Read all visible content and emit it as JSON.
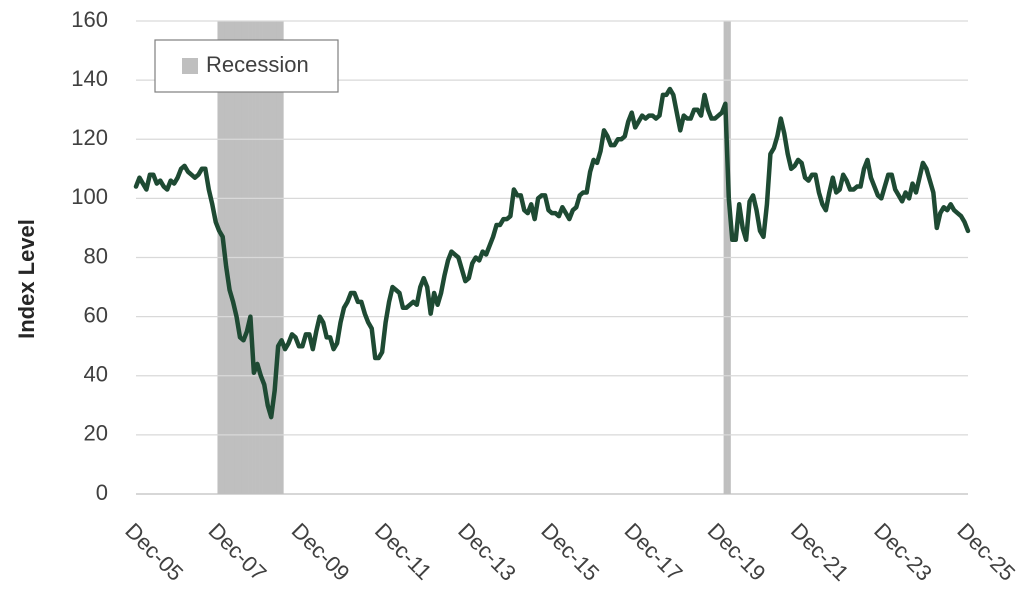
{
  "chart_data": {
    "type": "line",
    "y_label": "Index Level",
    "categories": [
      "Dec-05",
      null,
      null,
      null,
      null,
      null,
      null,
      null,
      null,
      null,
      null,
      null,
      null,
      null,
      null,
      null,
      null,
      null,
      null,
      null,
      null,
      null,
      null,
      null,
      "Dec-07",
      null,
      null,
      null,
      null,
      null,
      null,
      null,
      null,
      null,
      null,
      null,
      null,
      null,
      null,
      null,
      null,
      null,
      null,
      null,
      null,
      null,
      null,
      null,
      "Dec-09",
      null,
      null,
      null,
      null,
      null,
      null,
      null,
      null,
      null,
      null,
      null,
      null,
      null,
      null,
      null,
      null,
      null,
      null,
      null,
      null,
      null,
      null,
      null,
      "Dec-11",
      null,
      null,
      null,
      null,
      null,
      null,
      null,
      null,
      null,
      null,
      null,
      null,
      null,
      null,
      null,
      null,
      null,
      null,
      null,
      null,
      null,
      null,
      null,
      "Dec-13",
      null,
      null,
      null,
      null,
      null,
      null,
      null,
      null,
      null,
      null,
      null,
      null,
      null,
      null,
      null,
      null,
      null,
      null,
      null,
      null,
      null,
      null,
      null,
      "Dec-15",
      null,
      null,
      null,
      null,
      null,
      null,
      null,
      null,
      null,
      null,
      null,
      null,
      null,
      null,
      null,
      null,
      null,
      null,
      null,
      null,
      null,
      null,
      null,
      "Dec-17",
      null,
      null,
      null,
      null,
      null,
      null,
      null,
      null,
      null,
      null,
      null,
      null,
      null,
      null,
      null,
      null,
      null,
      null,
      null,
      null,
      null,
      null,
      null,
      "Dec-19",
      null,
      null,
      null,
      null,
      null,
      null,
      null,
      null,
      null,
      null,
      null,
      null,
      null,
      null,
      null,
      null,
      null,
      null,
      null,
      null,
      null,
      null,
      null,
      "Dec-21",
      null,
      null,
      null,
      null,
      null,
      null,
      null,
      null,
      null,
      null,
      null,
      null,
      null,
      null,
      null,
      null,
      null,
      null,
      null,
      null,
      null,
      null,
      null,
      "Dec-23",
      null,
      null,
      null,
      null,
      null,
      null,
      null,
      null,
      null,
      null,
      null,
      null,
      null,
      null,
      null,
      null,
      null,
      null,
      null,
      null,
      null,
      null,
      null,
      "Dec-25"
    ],
    "series": [
      {
        "name": "Recession",
        "color": "#bfbfbf",
        "kind": "band",
        "values": [
          null,
          null,
          null,
          null,
          null,
          null,
          null,
          null,
          null,
          null,
          null,
          null,
          null,
          null,
          null,
          null,
          null,
          null,
          null,
          null,
          null,
          null,
          null,
          null,
          160,
          160,
          160,
          160,
          160,
          160,
          160,
          160,
          160,
          160,
          160,
          160,
          160,
          160,
          160,
          160,
          160,
          160,
          160,
          null,
          null,
          null,
          null,
          null,
          null,
          null,
          null,
          null,
          null,
          null,
          null,
          null,
          null,
          null,
          null,
          null,
          null,
          null,
          null,
          null,
          null,
          null,
          null,
          null,
          null,
          null,
          null,
          null,
          null,
          null,
          null,
          null,
          null,
          null,
          null,
          null,
          null,
          null,
          null,
          null,
          null,
          null,
          null,
          null,
          null,
          null,
          null,
          null,
          null,
          null,
          null,
          null,
          null,
          null,
          null,
          null,
          null,
          null,
          null,
          null,
          null,
          null,
          null,
          null,
          null,
          null,
          null,
          null,
          null,
          null,
          null,
          null,
          null,
          null,
          null,
          null,
          null,
          null,
          null,
          null,
          null,
          null,
          null,
          null,
          null,
          null,
          null,
          null,
          null,
          null,
          null,
          null,
          null,
          null,
          null,
          null,
          null,
          null,
          null,
          null,
          null,
          null,
          null,
          null,
          null,
          null,
          null,
          null,
          null,
          null,
          null,
          null,
          null,
          null,
          null,
          null,
          null,
          null,
          null,
          null,
          null,
          null,
          null,
          null,
          null,
          null,
          160,
          160,
          null,
          null,
          null,
          null,
          null,
          null,
          null,
          null,
          null,
          null,
          null,
          null,
          null,
          null,
          null,
          null,
          null,
          null,
          null,
          null,
          null,
          null,
          null,
          null,
          null,
          null,
          null,
          null,
          null,
          null,
          null,
          null,
          null,
          null,
          null,
          null,
          null,
          null,
          null,
          null,
          null,
          null,
          null,
          null,
          null,
          null,
          null,
          null,
          null,
          null,
          null,
          null,
          null,
          null,
          null,
          null,
          null,
          null,
          null,
          null,
          null,
          null,
          null,
          null,
          null,
          null,
          null,
          null,
          null
        ]
      },
      {
        "color": "#1e4a33",
        "kind": "line",
        "values": [
          104,
          107,
          105,
          103,
          108,
          108,
          105,
          106,
          104,
          103,
          106,
          105,
          107,
          110,
          111,
          109,
          108,
          107,
          108,
          110,
          110,
          103,
          98,
          92,
          89,
          87,
          77,
          69,
          65,
          60,
          53,
          52,
          55,
          60,
          41,
          44,
          40,
          37,
          30,
          26,
          35,
          50,
          52,
          49,
          51,
          54,
          53,
          50,
          50,
          54,
          54,
          49,
          55,
          60,
          58,
          53,
          53,
          49,
          51,
          58,
          63,
          65,
          68,
          68,
          65,
          65,
          61,
          58,
          56,
          46,
          46,
          48,
          58,
          65,
          70,
          69,
          68,
          63,
          63,
          64,
          65,
          64,
          70,
          73,
          70,
          61,
          68,
          64,
          68,
          74,
          79,
          82,
          81,
          80,
          76,
          72,
          73,
          78,
          80,
          79,
          82,
          81,
          84,
          87,
          91,
          91,
          93,
          93,
          94,
          103,
          101,
          101,
          96,
          95,
          98,
          93,
          100,
          101,
          101,
          96,
          95,
          95,
          94,
          97,
          95,
          93,
          96,
          97,
          101,
          102,
          102,
          109,
          113,
          112,
          116,
          123,
          121,
          118,
          118,
          120,
          120,
          121,
          126,
          129,
          124,
          126,
          128,
          127,
          128,
          128,
          127,
          128,
          135,
          135,
          137,
          135,
          129,
          123,
          128,
          127,
          127,
          130,
          130,
          128,
          135,
          130,
          127,
          127,
          128,
          129,
          132,
          100,
          86,
          86,
          98,
          90,
          86,
          99,
          101,
          96,
          89,
          87,
          98,
          115,
          117,
          121,
          127,
          122,
          115,
          110,
          111,
          113,
          112,
          107,
          106,
          108,
          108,
          102,
          98,
          96,
          102,
          107,
          102,
          103,
          108,
          106,
          103,
          103,
          104,
          104,
          110,
          113,
          107,
          104,
          101,
          100,
          104,
          108,
          108,
          103,
          101,
          99,
          102,
          100,
          105,
          102,
          107,
          112,
          110,
          106,
          102,
          90,
          95,
          97,
          96,
          98,
          96,
          95,
          94,
          92,
          89
        ]
      }
    ],
    "ylim": [
      0,
      160
    ],
    "yticks": [
      0,
      20,
      40,
      60,
      80,
      100,
      120,
      140,
      160
    ],
    "grid": true,
    "legend": "upper left"
  }
}
